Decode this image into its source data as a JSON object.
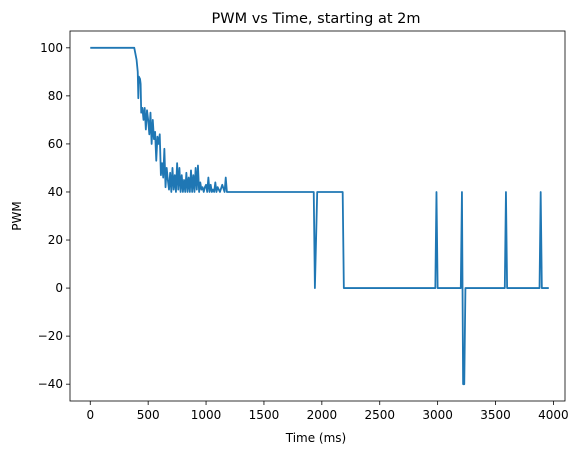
{
  "chart_data": {
    "type": "line",
    "title": "PWM vs Time, starting at 2m",
    "xlabel": "Time (ms)",
    "ylabel": "PWM",
    "xlim": [
      -175,
      4100
    ],
    "ylim": [
      -47,
      107
    ],
    "xticks": [
      0,
      500,
      1000,
      1500,
      2000,
      2500,
      3000,
      3500,
      4000
    ],
    "yticks": [
      -40,
      -20,
      0,
      20,
      40,
      60,
      80,
      100
    ],
    "grid": false,
    "line_color": "#1f77b4",
    "series": [
      {
        "x": [
          0,
          380,
          400,
          410,
          415,
          420,
          430,
          435,
          440,
          450,
          460,
          470,
          480,
          490,
          500,
          510,
          520,
          530,
          540,
          550,
          560,
          570,
          580,
          590,
          600,
          610,
          620,
          630,
          640,
          650,
          660,
          670,
          680,
          690,
          700,
          710,
          720,
          730,
          740,
          750,
          760,
          770,
          780,
          790,
          800,
          810,
          820,
          830,
          840,
          850,
          860,
          870,
          880,
          890,
          900,
          910,
          920,
          930,
          940,
          950,
          960,
          970,
          980,
          990,
          1000,
          1010,
          1020,
          1030,
          1040,
          1050,
          1060,
          1070,
          1080,
          1090,
          1100,
          1120,
          1140,
          1160,
          1170,
          1180,
          1190,
          1930,
          1940,
          1960,
          2180,
          2190,
          2980,
          2990,
          3000,
          3200,
          3210,
          3220,
          3230,
          3240,
          3580,
          3590,
          3600,
          3880,
          3890,
          3900,
          3960
        ],
        "y": [
          100,
          100,
          95,
          90,
          79,
          88,
          87,
          85,
          73,
          75,
          70,
          75,
          66,
          74,
          70,
          64,
          73,
          60,
          70,
          62,
          65,
          53,
          63,
          60,
          64,
          47,
          52,
          46,
          58,
          42,
          50,
          45,
          41,
          48,
          40,
          50,
          41,
          47,
          40,
          52,
          41,
          50,
          40,
          47,
          40,
          45,
          40,
          48,
          40,
          46,
          40,
          49,
          40,
          47,
          40,
          50,
          41,
          51,
          40,
          44,
          41,
          42,
          40,
          42,
          43,
          40,
          46,
          40,
          43,
          40,
          41,
          40,
          44,
          40,
          42,
          40,
          43,
          40,
          46,
          40,
          40,
          40,
          0,
          40,
          40,
          0,
          0,
          40,
          0,
          0,
          40,
          -40,
          -40,
          0,
          0,
          40,
          0,
          0,
          40,
          0,
          0
        ]
      }
    ]
  }
}
